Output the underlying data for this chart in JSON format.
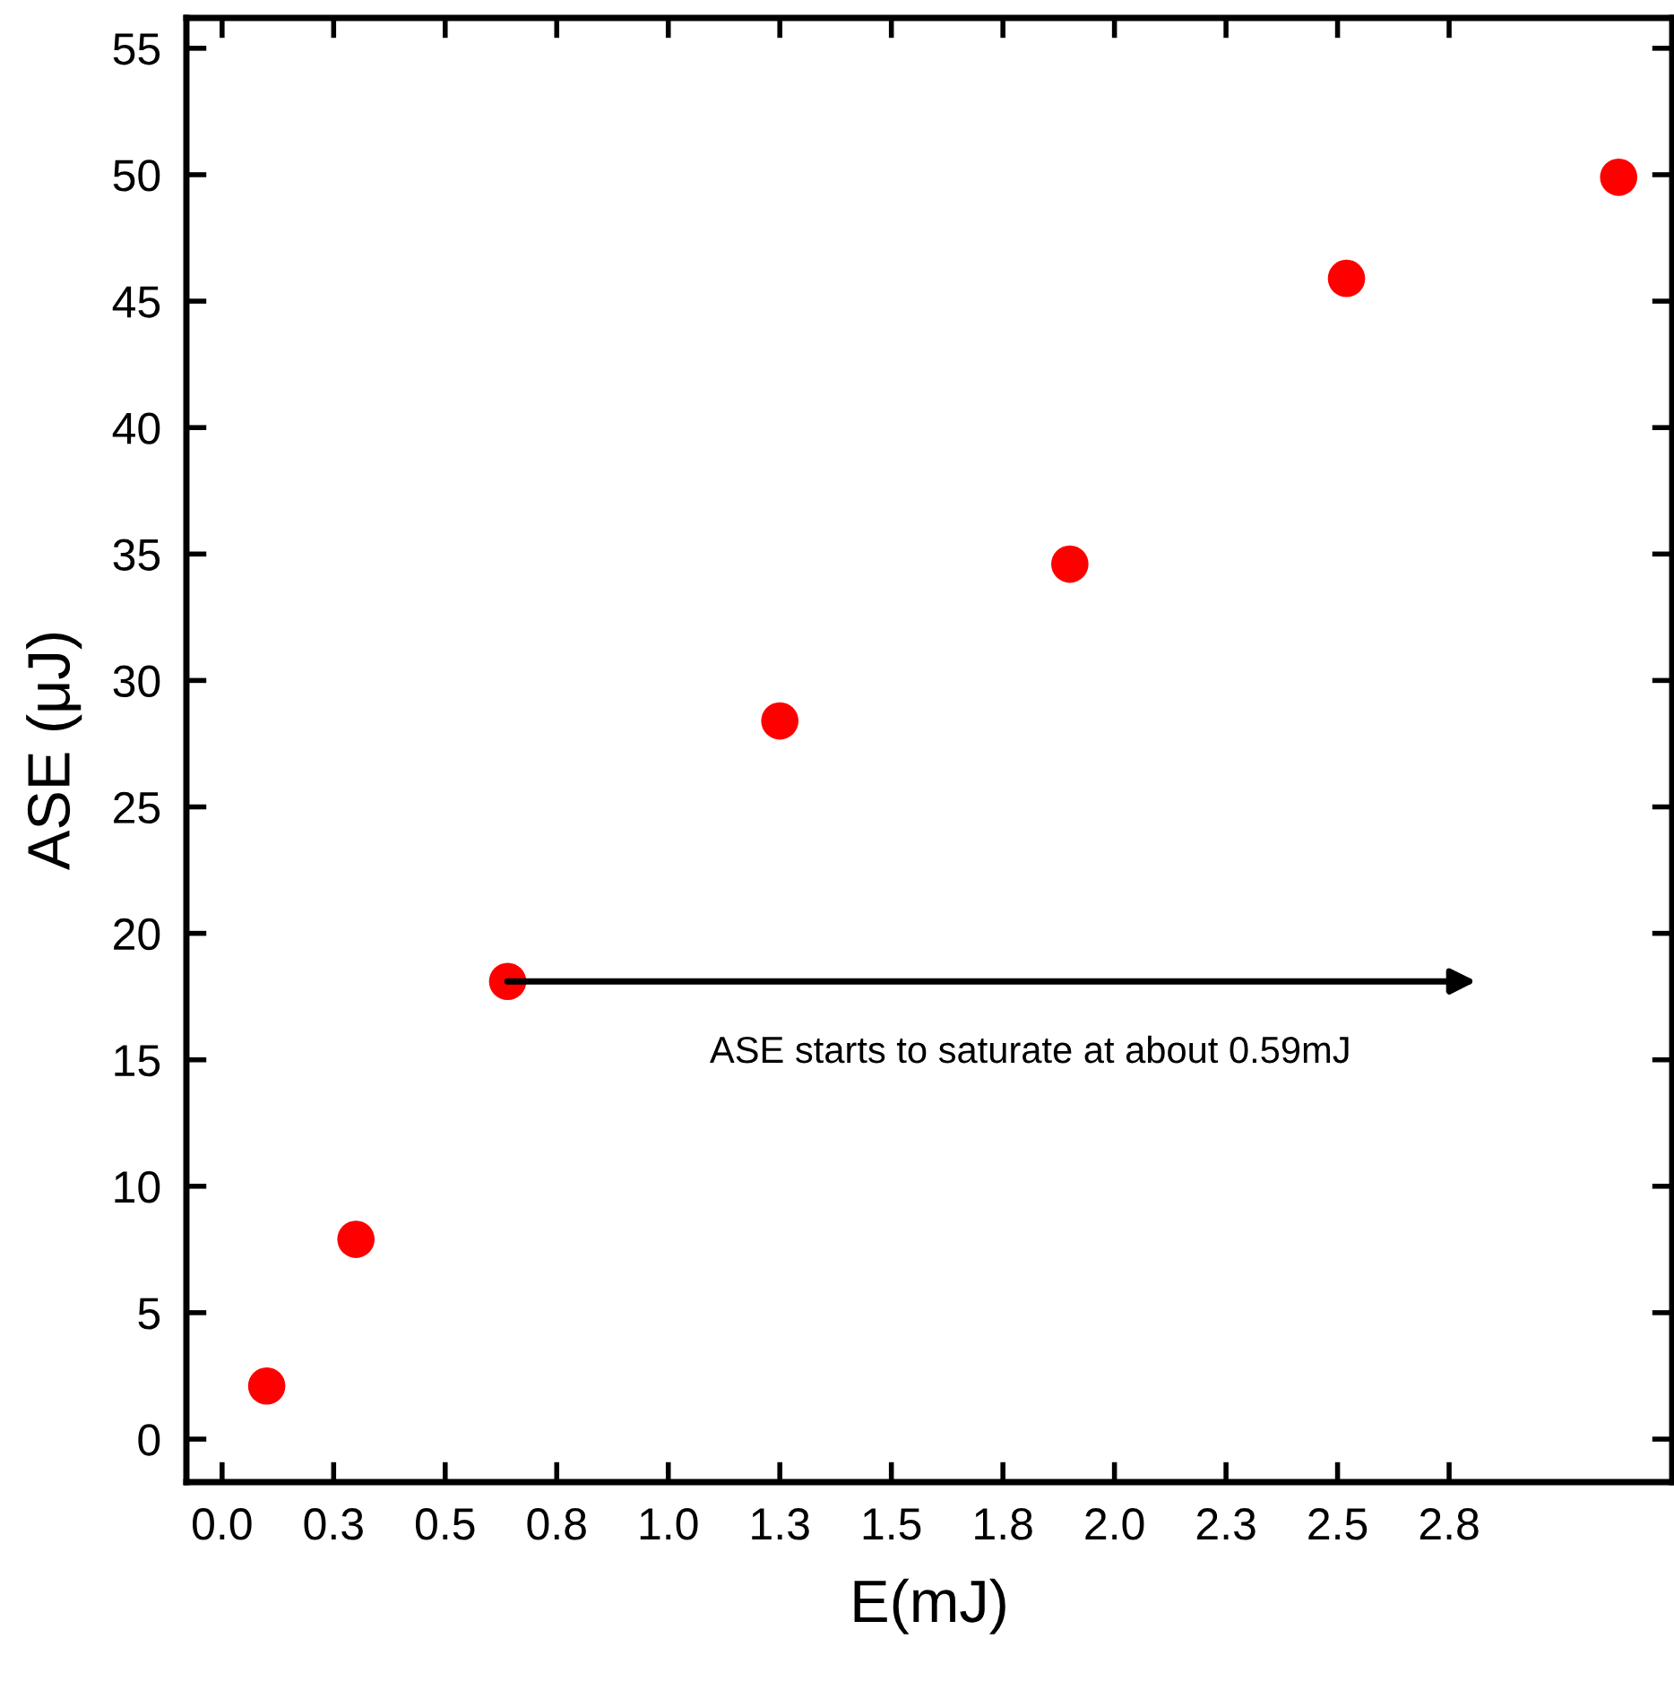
{
  "chart_data": {
    "type": "scatter",
    "xlabel": "E(mJ)",
    "ylabel": "ASE (μJ)",
    "x": [
      0.1,
      0.3,
      0.64,
      1.25,
      1.9,
      2.52,
      3.13
    ],
    "values": [
      2.1,
      7.9,
      18.1,
      28.4,
      34.6,
      45.9,
      49.9
    ],
    "color": "#ff0000",
    "marker": "circle",
    "xlim": [
      -0.08,
      3.25
    ],
    "ylim": [
      -1.7,
      56.2
    ],
    "xticks": [
      {
        "value": 0,
        "label": "0.0"
      },
      {
        "value": 0.25,
        "label": "0.3"
      },
      {
        "value": 0.5,
        "label": "0.5"
      },
      {
        "value": 0.75,
        "label": "0.8"
      },
      {
        "value": 1.0,
        "label": "1.0"
      },
      {
        "value": 1.25,
        "label": "1.3"
      },
      {
        "value": 1.5,
        "label": "1.5"
      },
      {
        "value": 1.75,
        "label": "1.8"
      },
      {
        "value": 2.0,
        "label": "2.0"
      },
      {
        "value": 2.25,
        "label": "2.3"
      },
      {
        "value": 2.5,
        "label": "2.5"
      },
      {
        "value": 2.75,
        "label": "2.8"
      }
    ],
    "yticks": [
      0,
      5,
      10,
      15,
      20,
      25,
      30,
      35,
      40,
      45,
      50,
      55
    ],
    "annotations": [
      "ASE starts to saturate at about 0.59mJ"
    ],
    "grid": false,
    "legend": false
  }
}
